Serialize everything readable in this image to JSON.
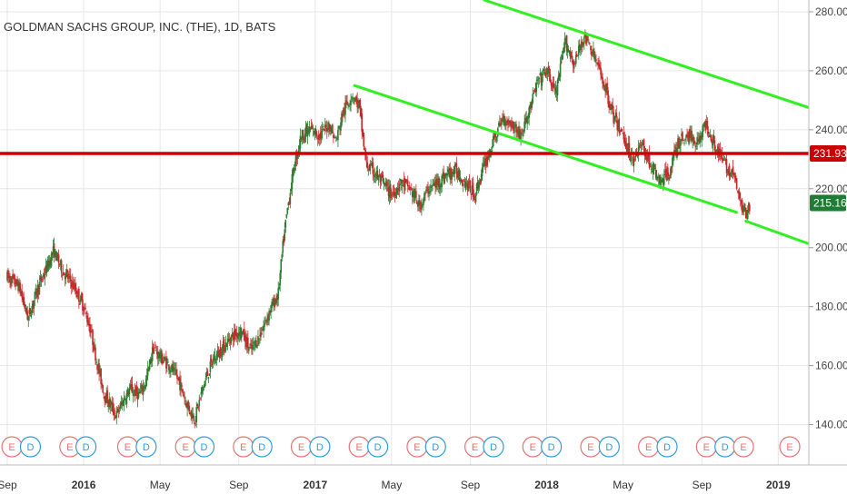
{
  "chart_data": {
    "type": "candlestick",
    "title": "GOLDMAN SACHS GROUP, INC. (THE), 1D, BATS",
    "ylim": [
      130,
      284
    ],
    "yticks": [
      "140.00",
      "160.00",
      "180.00",
      "200.00",
      "220.00",
      "240.00",
      "260.00",
      "280.00"
    ],
    "xticks": [
      {
        "label": "Sep",
        "t": 2015.67,
        "bold": false
      },
      {
        "label": "2016",
        "t": 2016.0,
        "bold": true
      },
      {
        "label": "May",
        "t": 2016.33,
        "bold": false
      },
      {
        "label": "Sep",
        "t": 2016.67,
        "bold": false
      },
      {
        "label": "2017",
        "t": 2017.0,
        "bold": true
      },
      {
        "label": "May",
        "t": 2017.33,
        "bold": false
      },
      {
        "label": "Sep",
        "t": 2017.67,
        "bold": false
      },
      {
        "label": "2018",
        "t": 2018.0,
        "bold": true
      },
      {
        "label": "May",
        "t": 2018.33,
        "bold": false
      },
      {
        "label": "Sep",
        "t": 2018.67,
        "bold": false
      },
      {
        "label": "2019",
        "t": 2019.0,
        "bold": true
      }
    ],
    "xlim": [
      2015.67,
      2019.25
    ],
    "price_path": [
      [
        2015.67,
        190
      ],
      [
        2015.72,
        187
      ],
      [
        2015.76,
        176
      ],
      [
        2015.8,
        186
      ],
      [
        2015.84,
        193
      ],
      [
        2015.87,
        199
      ],
      [
        2015.91,
        192
      ],
      [
        2015.95,
        188
      ],
      [
        2016.0,
        180
      ],
      [
        2016.03,
        172
      ],
      [
        2016.06,
        160
      ],
      [
        2016.09,
        150
      ],
      [
        2016.12,
        146
      ],
      [
        2016.14,
        143
      ],
      [
        2016.17,
        148
      ],
      [
        2016.2,
        152
      ],
      [
        2016.24,
        150
      ],
      [
        2016.27,
        155
      ],
      [
        2016.3,
        166
      ],
      [
        2016.33,
        163
      ],
      [
        2016.37,
        160
      ],
      [
        2016.41,
        155
      ],
      [
        2016.45,
        146
      ],
      [
        2016.48,
        142
      ],
      [
        2016.52,
        154
      ],
      [
        2016.56,
        162
      ],
      [
        2016.6,
        166
      ],
      [
        2016.64,
        170
      ],
      [
        2016.68,
        172
      ],
      [
        2016.72,
        165
      ],
      [
        2016.76,
        170
      ],
      [
        2016.8,
        178
      ],
      [
        2016.84,
        184
      ],
      [
        2016.86,
        200
      ],
      [
        2016.88,
        213
      ],
      [
        2016.91,
        228
      ],
      [
        2016.94,
        238
      ],
      [
        2016.98,
        240
      ],
      [
        2017.02,
        238
      ],
      [
        2017.06,
        242
      ],
      [
        2017.09,
        236
      ],
      [
        2017.12,
        246
      ],
      [
        2017.16,
        252
      ],
      [
        2017.19,
        248
      ],
      [
        2017.22,
        228
      ],
      [
        2017.25,
        226
      ],
      [
        2017.29,
        222
      ],
      [
        2017.33,
        218
      ],
      [
        2017.37,
        222
      ],
      [
        2017.41,
        220
      ],
      [
        2017.45,
        214
      ],
      [
        2017.49,
        220
      ],
      [
        2017.53,
        222
      ],
      [
        2017.57,
        225
      ],
      [
        2017.61,
        226
      ],
      [
        2017.65,
        222
      ],
      [
        2017.69,
        218
      ],
      [
        2017.73,
        228
      ],
      [
        2017.77,
        236
      ],
      [
        2017.81,
        244
      ],
      [
        2017.85,
        242
      ],
      [
        2017.89,
        238
      ],
      [
        2017.93,
        248
      ],
      [
        2017.96,
        256
      ],
      [
        2018.0,
        260
      ],
      [
        2018.04,
        252
      ],
      [
        2018.08,
        270
      ],
      [
        2018.12,
        262
      ],
      [
        2018.16,
        272
      ],
      [
        2018.2,
        266
      ],
      [
        2018.25,
        255
      ],
      [
        2018.29,
        244
      ],
      [
        2018.33,
        238
      ],
      [
        2018.37,
        230
      ],
      [
        2018.41,
        235
      ],
      [
        2018.45,
        228
      ],
      [
        2018.49,
        222
      ],
      [
        2018.53,
        226
      ],
      [
        2018.57,
        236
      ],
      [
        2018.61,
        238
      ],
      [
        2018.65,
        236
      ],
      [
        2018.69,
        242
      ],
      [
        2018.73,
        234
      ],
      [
        2018.77,
        228
      ],
      [
        2018.81,
        224
      ],
      [
        2018.84,
        214
      ],
      [
        2018.86,
        212
      ],
      [
        2018.88,
        215
      ]
    ],
    "horizontal_line": {
      "value": 231.93,
      "label": "231.93",
      "color": "#cc0000"
    },
    "last_price": {
      "value": 215.16,
      "label": "215.16",
      "color": "#1e7d32"
    },
    "trend_lines": [
      {
        "name": "upper-channel",
        "color": "#33ee22",
        "from": [
          2017.73,
          284
        ],
        "to": [
          2019.19,
          246
        ]
      },
      {
        "name": "middle-channel",
        "color": "#33ee22",
        "from": [
          2017.17,
          255
        ],
        "to": [
          2018.82,
          212
        ]
      },
      {
        "name": "lower-channel",
        "color": "#33ee22",
        "from": [
          2018.86,
          209
        ],
        "to": [
          2019.25,
          198
        ]
      }
    ],
    "events": [
      {
        "type": "E",
        "t": 2015.69
      },
      {
        "type": "D",
        "t": 2015.77
      },
      {
        "type": "E",
        "t": 2015.94
      },
      {
        "type": "D",
        "t": 2016.01
      },
      {
        "type": "E",
        "t": 2016.19
      },
      {
        "type": "D",
        "t": 2016.27
      },
      {
        "type": "E",
        "t": 2016.44
      },
      {
        "type": "D",
        "t": 2016.52
      },
      {
        "type": "E",
        "t": 2016.69
      },
      {
        "type": "D",
        "t": 2016.77
      },
      {
        "type": "E",
        "t": 2016.94
      },
      {
        "type": "D",
        "t": 2017.02
      },
      {
        "type": "E",
        "t": 2017.19
      },
      {
        "type": "D",
        "t": 2017.27
      },
      {
        "type": "E",
        "t": 2017.44
      },
      {
        "type": "D",
        "t": 2017.52
      },
      {
        "type": "E",
        "t": 2017.69
      },
      {
        "type": "D",
        "t": 2017.77
      },
      {
        "type": "E",
        "t": 2017.94
      },
      {
        "type": "D",
        "t": 2018.02
      },
      {
        "type": "E",
        "t": 2018.19
      },
      {
        "type": "D",
        "t": 2018.27
      },
      {
        "type": "E",
        "t": 2018.44
      },
      {
        "type": "D",
        "t": 2018.52
      },
      {
        "type": "E",
        "t": 2018.69
      },
      {
        "type": "D",
        "t": 2018.77
      },
      {
        "type": "E",
        "t": 2018.85
      },
      {
        "type": "E",
        "t": 2019.05
      }
    ],
    "colors": {
      "up": "#2e7d32",
      "down": "#c62828",
      "grid": "#e6e6e6",
      "dividend": "#2d9cdb",
      "earnings": "#e57373"
    }
  }
}
